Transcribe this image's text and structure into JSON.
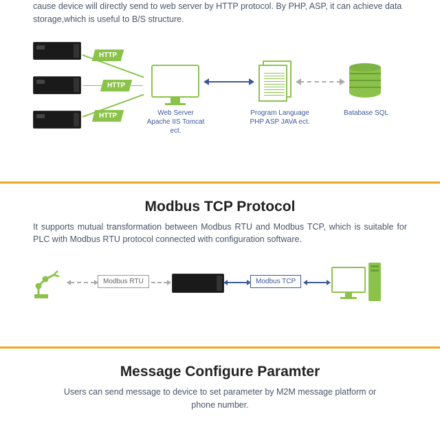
{
  "colors": {
    "accent": "#8bc34a",
    "accent_dark": "#689f38",
    "divider": "#f5a623",
    "link": "#3b5998",
    "text": "#4a5568",
    "dash": "#aaaaaa",
    "device": "#1a1a1a"
  },
  "section1": {
    "intro": "cause device will directly send to web server by HTTP protocol. By PHP, ASP, it can achieve data storage,which is useful to B/S structure.",
    "http_label": "HTTP",
    "webserver_label": "Web Server\nApache IIS Tomcat ect.",
    "program_label": "Program Language\nPHP ASP JAVA ect.",
    "db_label": "Batabase SQL"
  },
  "section2": {
    "title": "Modbus TCP Protocol",
    "desc": "It supports mutual transformation between Modbus RTU and Modbus TCP, which is suitable for PLC with Modbus RTU protocol connected with configuration software.",
    "rtu_label": "Modbus RTU",
    "tcp_label": "Modbus TCP"
  },
  "section3": {
    "title": "Message Configure Paramter",
    "desc": "Users can send message to device to set parameter by M2M message platform or phone number."
  }
}
